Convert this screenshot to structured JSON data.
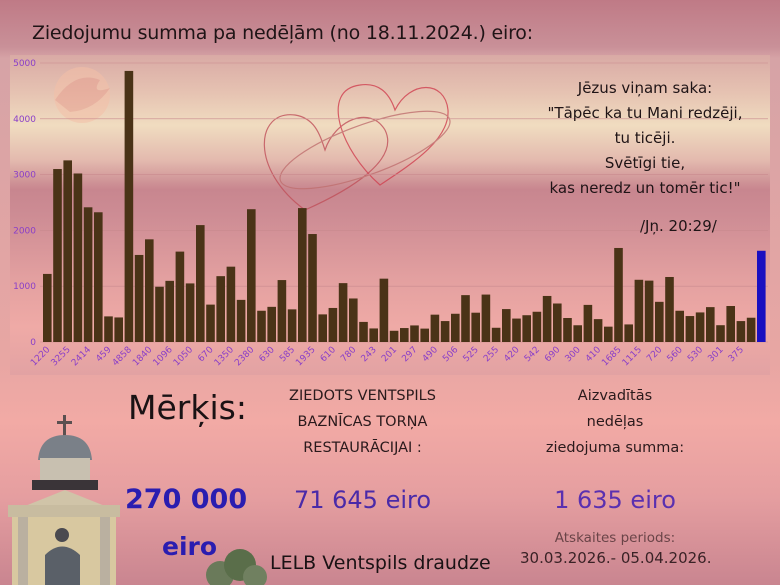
{
  "title": "Ziedojumu summa pa nedēļām (no 18.11.2024.) eiro:",
  "quote": {
    "lines": [
      "Jēzus viņam saka:",
      "\"Tāpēc ka tu Mani redzēji,",
      "tu ticēji.",
      "Svētīgi tie,",
      "kas neredz un tomēr tic!\""
    ],
    "reference": "/Jņ. 20:29/"
  },
  "goal": {
    "label": "Mērķis:",
    "amount": "270 000",
    "unit": "eiro"
  },
  "donated": {
    "lines": [
      "ZIEDOTS VENTSPILS",
      "BAZNĪCAS TORŅA",
      "RESTAURĀCIJAI :"
    ],
    "amount": "71 645 eiro"
  },
  "last_week": {
    "lines": [
      "Aizvadītās",
      "nedēļas",
      "ziedojuma summa:"
    ],
    "amount": "1 635 eiro",
    "period_label": "Atskaites periods:",
    "period": "30.03.2026.- 05.04.2026."
  },
  "organization": "LELB Ventspils draudze",
  "colors": {
    "bar": "#4a3317",
    "current_bar": "#1a0fc0",
    "tick_label": "#8a3fc8",
    "accent": "#2a1db0"
  },
  "chart_data": {
    "type": "bar",
    "title": "Ziedojumu summa pa nedēļām (no 18.11.2024.) eiro:",
    "ylim": [
      0,
      5000
    ],
    "yticks": [
      0,
      1000,
      2000,
      3000,
      4000,
      5000
    ],
    "grid": true,
    "x_tick_labels": [
      "1220",
      "",
      "3255",
      "",
      "2414",
      "",
      "459",
      "",
      "4858",
      "",
      "1840",
      "",
      "1096",
      "",
      "1050",
      "",
      "670",
      "",
      "1350",
      "",
      "2380",
      "",
      "630",
      "",
      "585",
      "",
      "1935",
      "",
      "610",
      "",
      "780",
      "",
      "243",
      "",
      "201",
      "",
      "297",
      "",
      "490",
      "",
      "506",
      "",
      "525",
      "",
      "255",
      "",
      "420",
      "",
      "542",
      "",
      "690",
      "",
      "300",
      "",
      "410",
      "",
      "1685",
      "",
      "1115",
      "",
      "720",
      "",
      "560",
      "",
      "530",
      "",
      "301",
      "",
      "375",
      "",
      ""
    ],
    "values": [
      1220,
      3100,
      3255,
      3020,
      2414,
      2325,
      459,
      440,
      4858,
      1560,
      1840,
      990,
      1096,
      1620,
      1050,
      2095,
      670,
      1180,
      1350,
      755,
      2380,
      560,
      630,
      1110,
      585,
      2400,
      1935,
      495,
      610,
      1055,
      780,
      360,
      243,
      1135,
      201,
      250,
      297,
      240,
      490,
      375,
      506,
      840,
      525,
      850,
      255,
      590,
      420,
      480,
      542,
      825,
      690,
      430,
      300,
      665,
      410,
      275,
      1685,
      315,
      1115,
      1100,
      720,
      1165,
      560,
      465,
      530,
      625,
      301,
      645,
      375,
      435,
      1635
    ],
    "highlighted_index": 70
  }
}
